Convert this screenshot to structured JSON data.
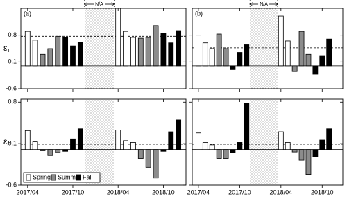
{
  "chart_data": [
    {
      "type": "bar",
      "panel_label": "(a)",
      "annotation": "N/A",
      "ylabel": "ε",
      "ylabel_subscript": "T",
      "categories": [
        "2017/04",
        null,
        null,
        null,
        null,
        null,
        "2017/10",
        null,
        null,
        null,
        null,
        null,
        "2018/04",
        null,
        null,
        null,
        null,
        null,
        "2018/10",
        null,
        null
      ],
      "series": [
        {
          "color": "#ffffff",
          "values": [
            0.9,
            0.67,
            null,
            null,
            null,
            null,
            null,
            null,
            null,
            null,
            null,
            null,
            1.5,
            0.9,
            0.74,
            null,
            null,
            null,
            null,
            null,
            null
          ]
        },
        {
          "color": "#8c8c8c",
          "values": [
            null,
            null,
            0.3,
            0.45,
            0.77,
            null,
            null,
            null,
            null,
            null,
            null,
            null,
            null,
            null,
            null,
            0.72,
            0.74,
            1.05,
            null,
            null,
            null
          ]
        },
        {
          "color": "#000000",
          "values": [
            null,
            null,
            null,
            null,
            null,
            0.74,
            0.52,
            0.62,
            null,
            null,
            null,
            null,
            null,
            null,
            null,
            null,
            null,
            null,
            0.85,
            0.6,
            0.92
          ]
        }
      ],
      "mean": 0.77,
      "ylim": [
        -0.6,
        1.5
      ],
      "yticks": [
        -0.6,
        0.1,
        0.8
      ]
    },
    {
      "type": "bar",
      "panel_label": "(b)",
      "annotation": "N/A",
      "categories": [
        "2017/04",
        null,
        null,
        null,
        null,
        null,
        "2017/10",
        null,
        null,
        null,
        null,
        null,
        "2018/04",
        null,
        null,
        null,
        null,
        null,
        "2018/10",
        null,
        null
      ],
      "series": [
        {
          "color": "#ffffff",
          "values": [
            0.8,
            0.6,
            0.45,
            null,
            null,
            null,
            null,
            null,
            null,
            null,
            null,
            null,
            1.3,
            0.65,
            null,
            null,
            null,
            null,
            null,
            null,
            null
          ]
        },
        {
          "color": "#8c8c8c",
          "values": [
            null,
            null,
            null,
            0.83,
            0.45,
            null,
            null,
            null,
            null,
            null,
            null,
            null,
            null,
            null,
            -0.15,
            0.9,
            0.3,
            null,
            null,
            null,
            null
          ]
        },
        {
          "color": "#000000",
          "values": [
            null,
            null,
            null,
            null,
            null,
            -0.1,
            0.35,
            0.55,
            null,
            null,
            null,
            null,
            null,
            null,
            null,
            null,
            null,
            -0.22,
            0.25,
            0.7,
            null
          ]
        }
      ],
      "mean": 0.47,
      "ylim": [
        -0.6,
        1.5
      ],
      "yticks": [
        -0.6,
        0.1,
        0.8
      ]
    },
    {
      "type": "bar",
      "ylabel": "ε",
      "ylabel_subscript": "P",
      "legend": "lower left",
      "categories": [
        "2017/04",
        null,
        null,
        null,
        null,
        null,
        "2017/10",
        null,
        null,
        null,
        null,
        null,
        "2018/04",
        null,
        null,
        null,
        null,
        null,
        "2018/10",
        null,
        null
      ],
      "series": [
        {
          "name": "Spring",
          "color": "#ffffff",
          "values": [
            0.32,
            0.13,
            null,
            null,
            null,
            null,
            null,
            null,
            null,
            null,
            null,
            null,
            0.33,
            0.15,
            0.12,
            null,
            null,
            null,
            null,
            null,
            null
          ]
        },
        {
          "name": "Summer",
          "color": "#8c8c8c",
          "values": [
            null,
            null,
            -0.02,
            -0.1,
            -0.05,
            null,
            null,
            null,
            null,
            null,
            null,
            null,
            null,
            null,
            null,
            -0.15,
            -0.3,
            -0.48,
            null,
            null,
            null
          ]
        },
        {
          "name": "Fall",
          "color": "#000000",
          "values": [
            null,
            null,
            null,
            null,
            null,
            -0.03,
            0.18,
            0.35,
            null,
            null,
            null,
            null,
            null,
            null,
            null,
            null,
            null,
            null,
            -0.03,
            0.3,
            0.5
          ]
        }
      ],
      "mean": 0.09,
      "ylim": [
        -0.6,
        0.85
      ],
      "yticks": [
        -0.6,
        0.1,
        0.8
      ]
    },
    {
      "type": "bar",
      "categories": [
        "2017/04",
        null,
        null,
        null,
        null,
        null,
        "2017/10",
        null,
        null,
        null,
        null,
        null,
        "2018/04",
        null,
        null,
        null,
        null,
        null,
        "2018/10",
        null,
        null
      ],
      "series": [
        {
          "color": "#ffffff",
          "values": [
            0.28,
            0.12,
            0.08,
            null,
            null,
            null,
            null,
            null,
            null,
            null,
            null,
            null,
            0.3,
            0.12,
            null,
            null,
            null,
            null,
            null,
            null,
            null
          ]
        },
        {
          "color": "#8c8c8c",
          "values": [
            null,
            null,
            null,
            -0.15,
            -0.15,
            null,
            null,
            null,
            null,
            null,
            null,
            null,
            null,
            null,
            -0.04,
            -0.18,
            -0.42,
            null,
            null,
            null,
            null
          ]
        },
        {
          "color": "#000000",
          "values": [
            null,
            null,
            null,
            null,
            null,
            -0.05,
            0.12,
            0.78,
            null,
            null,
            null,
            null,
            null,
            null,
            null,
            null,
            null,
            -0.12,
            0.16,
            0.35,
            null
          ]
        }
      ],
      "mean": 0.09,
      "ylim": [
        -0.6,
        0.85
      ],
      "yticks": [
        -0.6,
        0.1,
        0.8
      ]
    }
  ]
}
